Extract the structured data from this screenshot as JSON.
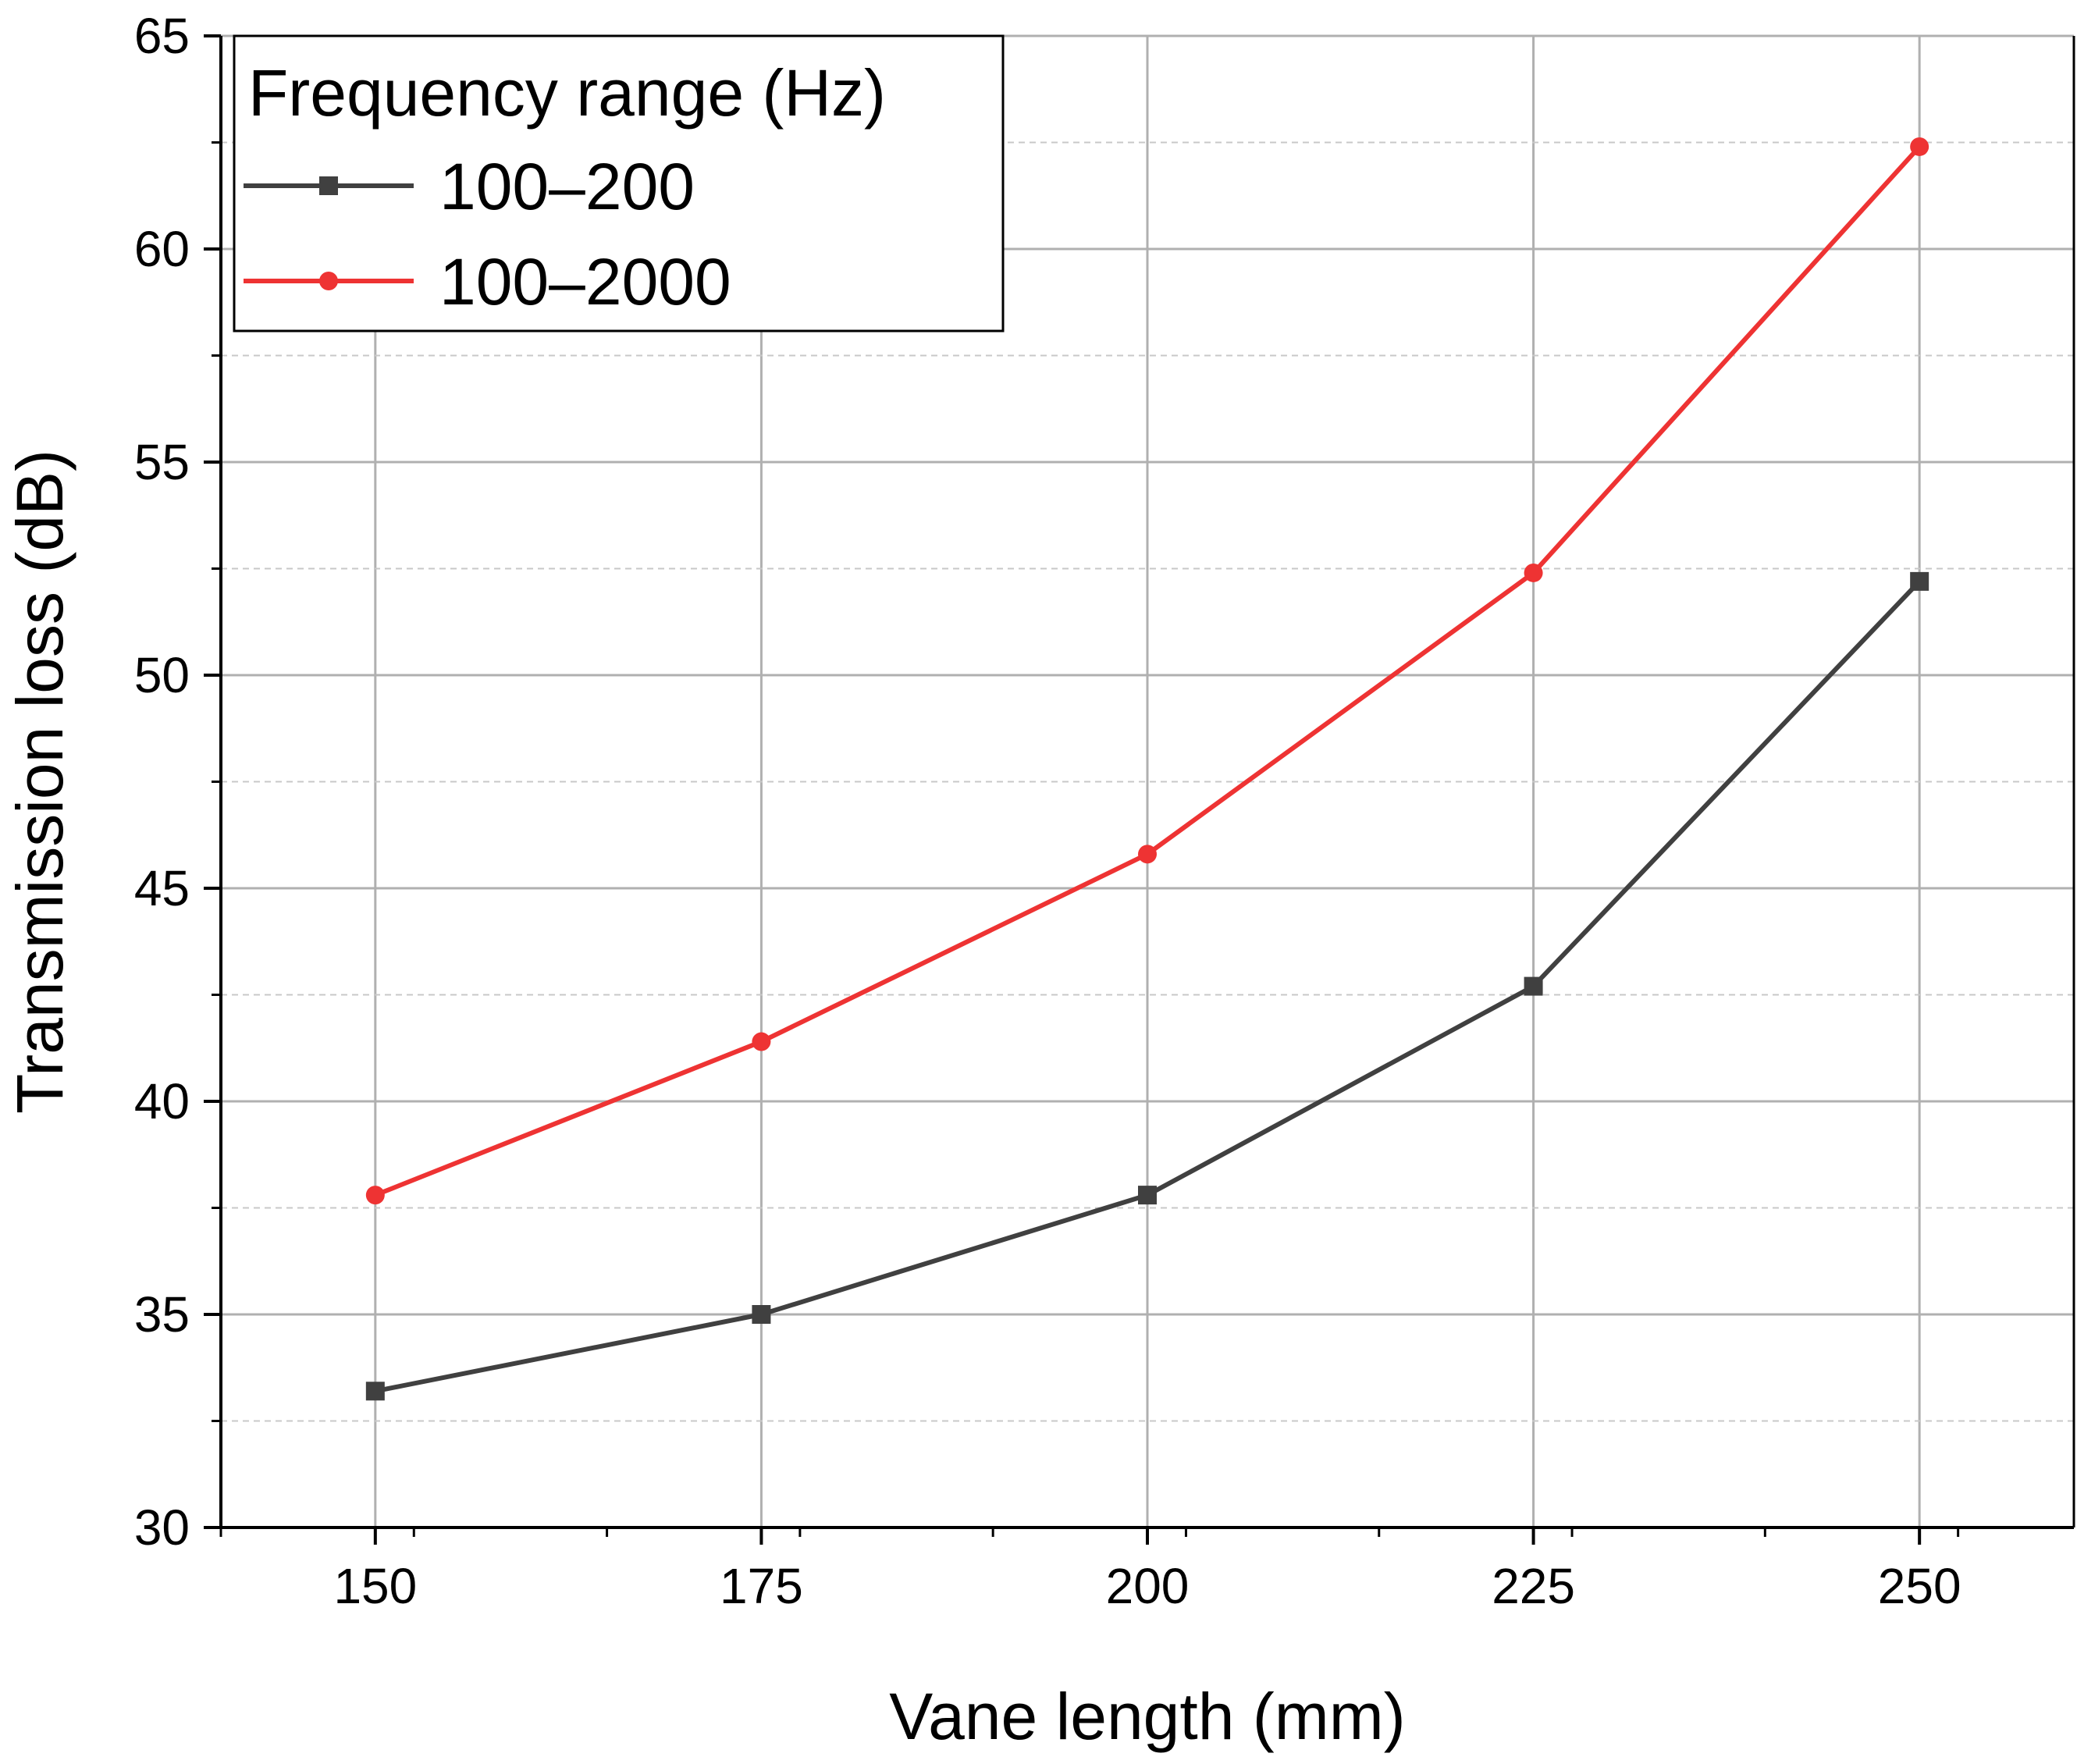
{
  "chart_data": {
    "type": "line",
    "title": "",
    "xlabel": "Vane length (mm)",
    "ylabel": "Transmission loss (dB)",
    "x": [
      150,
      175,
      200,
      225,
      250
    ],
    "x_ticks": [
      "150",
      "175",
      "200",
      "225",
      "250"
    ],
    "y_ticks": [
      "30",
      "35",
      "40",
      "45",
      "50",
      "55",
      "60",
      "65"
    ],
    "xlim": [
      140,
      260
    ],
    "ylim": [
      30,
      65
    ],
    "grid": true,
    "legend": {
      "title": "Frequency range (Hz)",
      "placement": "top-left"
    },
    "series": [
      {
        "name": "100–200",
        "color": "#404040",
        "marker": "square",
        "values": [
          33.2,
          35.0,
          37.8,
          42.7,
          52.2
        ]
      },
      {
        "name": "100–2000",
        "color": "#ee3333",
        "marker": "circle",
        "values": [
          37.8,
          41.4,
          45.8,
          52.4,
          62.4
        ]
      }
    ]
  }
}
